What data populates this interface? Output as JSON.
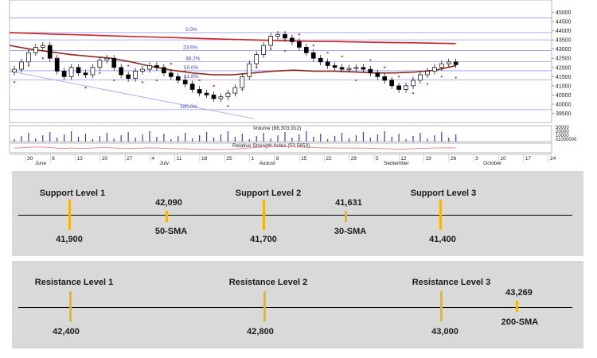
{
  "chart_data": [
    {
      "type": "candlestick",
      "title": "",
      "ylim": [
        39000,
        45500
      ],
      "y_ticks": [
        "45000",
        "44500",
        "44000",
        "43500",
        "43000",
        "42500",
        "42000",
        "41500",
        "41000",
        "40500",
        "40000",
        "39500"
      ],
      "x_tick_labels": [
        "30",
        "6",
        "13",
        "20",
        "27",
        "4",
        "11",
        "18",
        "25",
        "1",
        "8",
        "15",
        "22",
        "29",
        "5",
        "12",
        "19",
        "26",
        "3",
        "10",
        "17",
        "24"
      ],
      "months": [
        "June",
        "July",
        "August",
        "September",
        "October"
      ],
      "fib_levels": [
        {
          "label": "0.0%",
          "value": 43900
        },
        {
          "label": "23.6%",
          "value": 42920
        },
        {
          "label": "38.2%",
          "value": 42310
        },
        {
          "label": "50.0%",
          "value": 41820
        },
        {
          "label": "61.8%",
          "value": 41330
        },
        {
          "label": "100.0%",
          "value": 39700
        }
      ],
      "horizontal_lines": [
        44700,
        43900,
        43500,
        42920,
        42310,
        41820,
        41330,
        39700
      ],
      "sma_200": [
        43900,
        43860,
        43820,
        43790,
        43760,
        43720,
        43690,
        43660,
        43630,
        43590,
        43560,
        43530,
        43500,
        43470,
        43440,
        43420,
        43410,
        43390,
        43370,
        43350,
        43340,
        43320,
        43300
      ],
      "sma_50": [
        43200,
        43000,
        42850,
        42700,
        42600,
        42500,
        42300,
        42050,
        41850,
        41700,
        41600,
        41600,
        41700,
        41800,
        41850,
        41800,
        41800,
        41750,
        41700,
        41700,
        41750,
        41850,
        42100
      ],
      "candles_close": [
        41900,
        42300,
        42800,
        43100,
        43200,
        42500,
        41800,
        41500,
        42000,
        41700,
        41600,
        42000,
        42400,
        42500,
        42000,
        41600,
        41400,
        41800,
        41900,
        42100,
        42000,
        41700,
        41500,
        41300,
        41100,
        40800,
        40600,
        40500,
        40300,
        40400,
        40600,
        40900,
        41500,
        42200,
        42700,
        43200,
        43700,
        43800,
        43600,
        43400,
        43100,
        42800,
        42500,
        42300,
        42100,
        42000,
        41900,
        41950,
        42000,
        41900,
        41700,
        41500,
        41300,
        41000,
        40800,
        41000,
        41300,
        41600,
        41800,
        42000,
        42200,
        42300,
        42150
      ],
      "volume_label": "Volume (88,303,912)",
      "volume_ticks": [
        "30000",
        "20000",
        "10000",
        "x1000000"
      ],
      "rsi_label": "Relative Strength Index (53.5653)"
    },
    {
      "type": "levels",
      "support": [
        {
          "label": "Support Level 1",
          "value": "41,900"
        },
        {
          "label": "Support Level 2",
          "value": "41,700"
        },
        {
          "label": "Support Level 3",
          "value": "41,400"
        }
      ],
      "support_sma": [
        {
          "label": "50-SMA",
          "value": "42,090"
        },
        {
          "label": "30-SMA",
          "value": "41,631"
        }
      ],
      "resistance": [
        {
          "label": "Resistance Level 1",
          "value": "42,400"
        },
        {
          "label": "Resistance Level 2",
          "value": "42,800"
        },
        {
          "label": "Resistance Level 3",
          "value": "43,000"
        }
      ],
      "resistance_sma": [
        {
          "label": "200-SMA",
          "value": "43,269"
        }
      ]
    }
  ],
  "colors": {
    "candle_up": "#ffffff",
    "candle_down": "#000000",
    "sma_200": "#cc1f1f",
    "sma_50": "#8b2a1a",
    "sar_dots": "#e02020",
    "grid_line": "#9a9af0",
    "fib_text": "#3b3bd4",
    "volume_bar": "#3a3ad0",
    "rsi_line": "#e08080",
    "level_tick": "#f2b705",
    "panel_bg": "#d9d9d9"
  }
}
